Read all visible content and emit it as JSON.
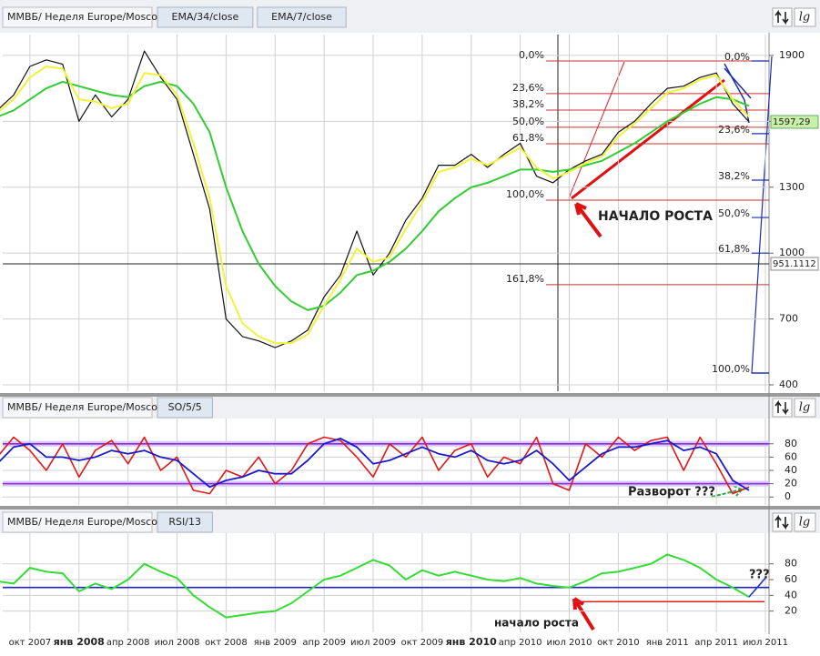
{
  "chart_data": [
    {
      "type": "line",
      "title": "ММВБ/ Неделя Europe/Moscow",
      "scale_button": "lg",
      "categories": [
        null,
        null,
        "окт 2007",
        null,
        null,
        "янв 2008",
        null,
        null,
        "апр 2008",
        null,
        null,
        "июл 2008",
        null,
        null,
        "окт 2008",
        null,
        null,
        "янв 2009",
        null,
        null,
        "апр 2009",
        null,
        null,
        "июл 2009",
        null,
        null,
        "окт 2009",
        null,
        null,
        "янв 2010",
        null,
        null,
        "апр 2010",
        null,
        null,
        "июл 2010",
        null,
        null,
        "окт 2010",
        null,
        null,
        "янв 2011",
        null,
        null,
        "апр 2011",
        null,
        null,
        "июл 2011"
      ],
      "series": [
        {
          "color": "#111111",
          "values": [
            1650,
            1720,
            1850,
            1880,
            1860,
            1600,
            1720,
            1620,
            1700,
            1920,
            1800,
            1700,
            1450,
            1200,
            700,
            620,
            600,
            570,
            600,
            650,
            800,
            900,
            1100,
            900,
            1000,
            1150,
            1250,
            1400,
            1400,
            1450,
            1390,
            1450,
            1500,
            1350,
            1320,
            1380,
            1420,
            1450,
            1550,
            1600,
            1680,
            1750,
            1760,
            1800,
            1820,
            1680,
            1597.29,
            null
          ]
        },
        {
          "name": "EMA/34/close",
          "color": "#33cc33",
          "values": [
            1620,
            1650,
            1700,
            1750,
            1780,
            1760,
            1740,
            1720,
            1710,
            1760,
            1780,
            1760,
            1680,
            1550,
            1300,
            1100,
            950,
            850,
            780,
            740,
            760,
            820,
            900,
            920,
            960,
            1020,
            1100,
            1190,
            1250,
            1300,
            1320,
            1350,
            1380,
            1380,
            1370,
            1380,
            1400,
            1420,
            1460,
            1500,
            1550,
            1600,
            1640,
            1680,
            1710,
            1700,
            1670,
            null
          ]
        },
        {
          "name": "EMA/7/close",
          "color": "#f2f23a",
          "values": [
            1640,
            1700,
            1800,
            1850,
            1840,
            1700,
            1690,
            1660,
            1680,
            1820,
            1810,
            1720,
            1500,
            1250,
            850,
            680,
            620,
            590,
            590,
            630,
            760,
            880,
            1020,
            960,
            980,
            1110,
            1230,
            1370,
            1390,
            1430,
            1400,
            1440,
            1480,
            1390,
            1340,
            1370,
            1410,
            1440,
            1530,
            1590,
            1660,
            1730,
            1750,
            1790,
            1810,
            1700,
            1620,
            null
          ]
        }
      ],
      "ylim": [
        371,
        1995
      ],
      "yticks": [
        400,
        700,
        1000,
        1300,
        1600,
        1900
      ],
      "grid": true,
      "current_price": {
        "value": 1597.29,
        "label": "1597,29"
      },
      "crosshair": {
        "value": 951.1112,
        "label": "951.1112"
      },
      "fib_levels_red": [
        {
          "value": 1875,
          "label": "0,0%"
        },
        {
          "value": 1726,
          "label": "23,6%"
        },
        {
          "value": 1651,
          "label": "38,2%"
        },
        {
          "value": 1573,
          "label": "50,0%"
        },
        {
          "value": 1498,
          "label": "61,8%"
        },
        {
          "value": 1241,
          "label": "100,0%"
        },
        {
          "value": 856,
          "label": "161,8%"
        }
      ],
      "fib_levels_blue": [
        {
          "value": 1875,
          "label": "0,0%"
        },
        {
          "value": 1544,
          "label": "23,6%"
        },
        {
          "value": 1332,
          "label": "38,2%"
        },
        {
          "value": 1162,
          "label": "50,0%"
        },
        {
          "value": 1000,
          "label": "61,8%"
        },
        {
          "value": 454,
          "label": "100,0%"
        }
      ],
      "annotations": [
        "НАЧАЛО РОСТА"
      ]
    },
    {
      "type": "line",
      "title": "ММВБ/ Неделя Europe/Moscow",
      "scale_button": "lg",
      "series": [
        {
          "name": "SO/5/5",
          "color": "#e01818",
          "values": [
            60,
            90,
            70,
            40,
            80,
            30,
            70,
            85,
            50,
            90,
            40,
            60,
            10,
            5,
            40,
            30,
            60,
            20,
            40,
            80,
            90,
            85,
            60,
            30,
            80,
            60,
            90,
            40,
            70,
            80,
            30,
            60,
            50,
            90,
            20,
            10,
            80,
            60,
            90,
            70,
            85,
            90,
            40,
            90,
            50,
            5,
            15,
            null
          ]
        },
        {
          "color": "#1a1acc",
          "values": [
            50,
            75,
            80,
            60,
            60,
            55,
            60,
            70,
            65,
            70,
            60,
            55,
            35,
            15,
            25,
            30,
            40,
            35,
            35,
            55,
            80,
            88,
            75,
            50,
            55,
            65,
            75,
            65,
            60,
            70,
            55,
            50,
            55,
            70,
            50,
            25,
            45,
            65,
            75,
            75,
            80,
            85,
            70,
            75,
            65,
            25,
            10,
            null
          ]
        }
      ],
      "ylim": [
        -12,
        118
      ],
      "yticks": [
        0,
        20,
        40,
        60,
        80
      ],
      "grid": true,
      "levels": [
        {
          "value": 80,
          "color": "#8a2be2"
        },
        {
          "value": 20,
          "color": "#8a2be2"
        }
      ],
      "annotations": [
        "Разворот ???"
      ]
    },
    {
      "type": "line",
      "title": "ММВБ/ Неделя Europe/Moscow",
      "scale_button": "lg",
      "series": [
        {
          "name": "RSI/13",
          "color": "#33dd33",
          "values": [
            58,
            55,
            75,
            70,
            68,
            45,
            55,
            48,
            60,
            80,
            70,
            62,
            40,
            25,
            12,
            15,
            18,
            20,
            30,
            45,
            60,
            65,
            75,
            85,
            78,
            60,
            72,
            65,
            70,
            65,
            60,
            58,
            62,
            55,
            52,
            50,
            58,
            68,
            70,
            75,
            80,
            92,
            85,
            75,
            60,
            50,
            38,
            null
          ]
        },
        {
          "color": "#2233cc",
          "values": [
            null,
            null,
            null,
            null,
            null,
            null,
            null,
            null,
            null,
            null,
            null,
            null,
            null,
            null,
            null,
            null,
            null,
            null,
            null,
            null,
            null,
            null,
            null,
            null,
            null,
            null,
            null,
            null,
            null,
            null,
            null,
            null,
            null,
            null,
            null,
            null,
            null,
            null,
            null,
            null,
            null,
            null,
            null,
            null,
            null,
            null,
            38,
            62
          ]
        }
      ],
      "ylim": [
        -7,
        119
      ],
      "yticks": [
        20,
        40,
        60,
        80
      ],
      "grid": true,
      "levels": [
        {
          "value": 50,
          "color": "#2222cc"
        },
        {
          "value": 32,
          "color": "#dd2222"
        }
      ],
      "annotations": [
        "начало роста",
        "???"
      ]
    }
  ]
}
